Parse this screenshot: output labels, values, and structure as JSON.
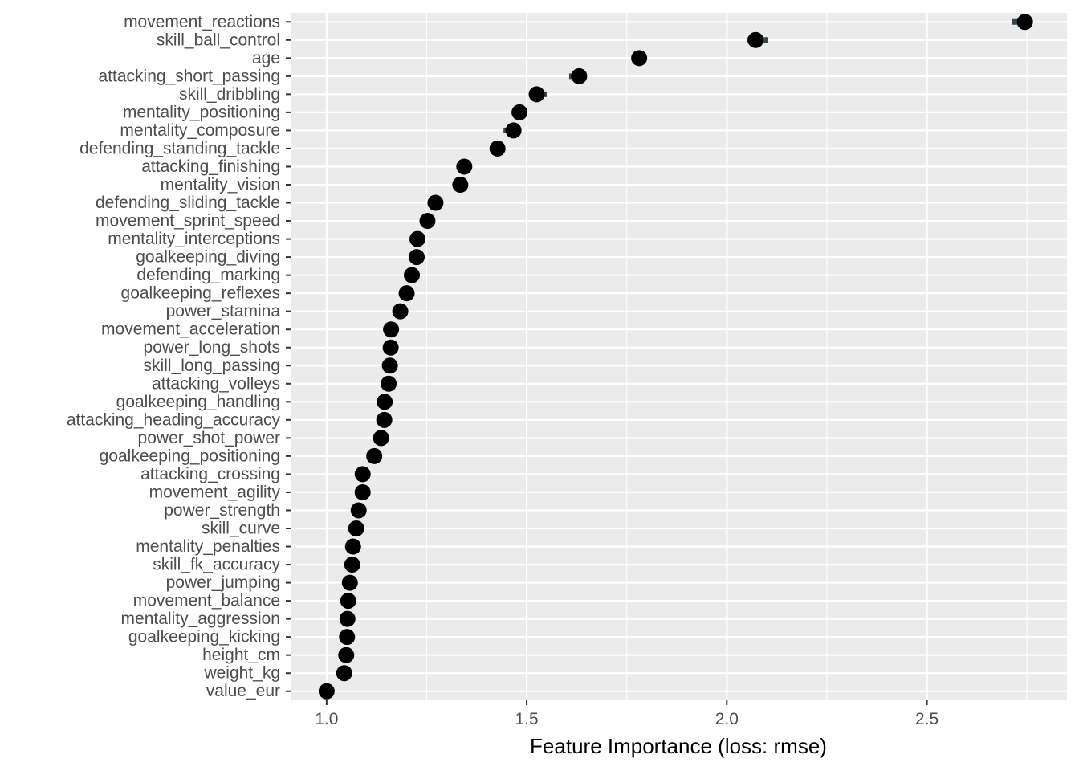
{
  "chart_data": {
    "type": "scatter",
    "title": "",
    "xlabel": "Feature Importance (loss: rmse)",
    "ylabel": "",
    "xlim": [
      0.91,
      2.85
    ],
    "x_ticks": [
      1.0,
      1.5,
      2.0,
      2.5
    ],
    "x_tick_labels": [
      "1.0",
      "1.5",
      "2.0",
      "2.5"
    ],
    "grid": true,
    "legend": "none",
    "colors": {
      "panel": "#EBEBEB",
      "grid": "#FFFFFF",
      "point": "#000000",
      "interval": "#37474F",
      "tick_text": "#4D4D4D",
      "axis_title": "#000000"
    },
    "features": [
      "movement_reactions",
      "skill_ball_control",
      "age",
      "attacking_short_passing",
      "skill_dribbling",
      "mentality_positioning",
      "mentality_composure",
      "defending_standing_tackle",
      "attacking_finishing",
      "mentality_vision",
      "defending_sliding_tackle",
      "movement_sprint_speed",
      "mentality_interceptions",
      "goalkeeping_diving",
      "defending_marking",
      "goalkeeping_reflexes",
      "power_stamina",
      "movement_acceleration",
      "power_long_shots",
      "skill_long_passing",
      "attacking_volleys",
      "goalkeeping_handling",
      "attacking_heading_accuracy",
      "power_shot_power",
      "goalkeeping_positioning",
      "attacking_crossing",
      "movement_agility",
      "power_strength",
      "skill_curve",
      "mentality_penalties",
      "skill_fk_accuracy",
      "power_jumping",
      "movement_balance",
      "mentality_aggression",
      "goalkeeping_kicking",
      "height_cm",
      "weight_kg",
      "value_eur"
    ],
    "values": [
      2.745,
      2.072,
      1.781,
      1.631,
      1.525,
      1.482,
      1.467,
      1.427,
      1.344,
      1.334,
      1.272,
      1.252,
      1.227,
      1.225,
      1.213,
      1.2,
      1.184,
      1.161,
      1.16,
      1.158,
      1.155,
      1.145,
      1.144,
      1.136,
      1.119,
      1.09,
      1.09,
      1.08,
      1.074,
      1.066,
      1.064,
      1.058,
      1.054,
      1.052,
      1.051,
      1.049,
      1.044,
      1.0
    ],
    "interval_low": [
      2.712,
      2.052,
      1.781,
      1.606,
      1.525,
      1.482,
      1.442,
      1.427,
      1.344,
      1.334,
      1.272,
      1.252,
      1.227,
      1.225,
      1.213,
      1.2,
      1.184,
      1.161,
      1.16,
      1.158,
      1.155,
      1.145,
      1.144,
      1.136,
      1.119,
      1.09,
      1.09,
      1.08,
      1.074,
      1.066,
      1.064,
      1.058,
      1.054,
      1.052,
      1.051,
      1.049,
      1.044,
      1.0
    ],
    "interval_high": [
      2.745,
      2.102,
      1.781,
      1.631,
      1.55,
      1.482,
      1.467,
      1.427,
      1.344,
      1.334,
      1.272,
      1.252,
      1.227,
      1.225,
      1.213,
      1.2,
      1.184,
      1.161,
      1.16,
      1.158,
      1.155,
      1.145,
      1.144,
      1.136,
      1.119,
      1.09,
      1.09,
      1.08,
      1.074,
      1.066,
      1.064,
      1.058,
      1.054,
      1.052,
      1.051,
      1.049,
      1.044,
      1.0
    ]
  }
}
